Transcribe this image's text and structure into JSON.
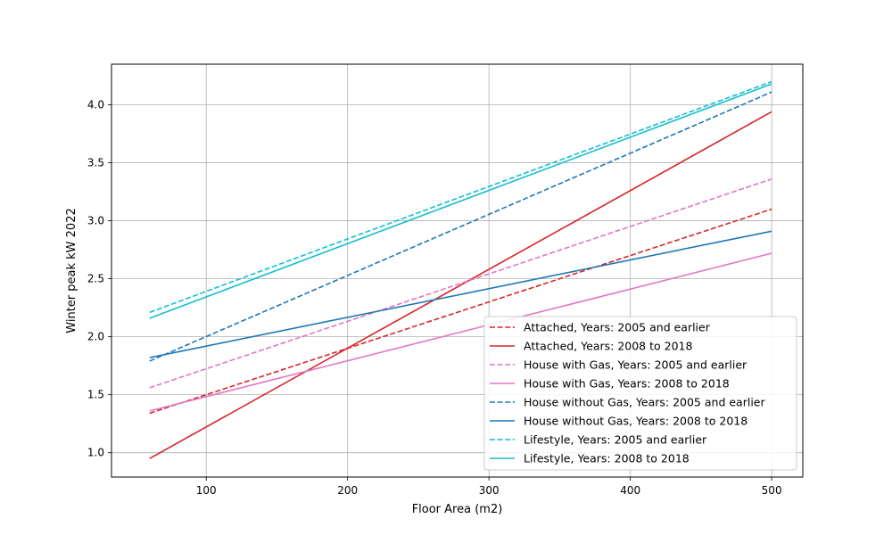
{
  "chart_data": {
    "type": "line",
    "title": "",
    "xlabel": "Floor Area (m2)",
    "ylabel": "Winter peak kW 2022",
    "xlim": [
      33,
      522
    ],
    "ylim": [
      0.79,
      4.35
    ],
    "x_ticks": [
      100,
      200,
      300,
      400,
      500
    ],
    "y_ticks": [
      1.0,
      1.5,
      2.0,
      2.5,
      3.0,
      3.5,
      4.0
    ],
    "grid": true,
    "legend_position": "lower-right",
    "series": [
      {
        "name": "Attached, Years: 2005 and earlier",
        "color": "#d62728",
        "style": "dashed",
        "x": [
          60,
          500
        ],
        "y": [
          1.34,
          3.1
        ]
      },
      {
        "name": "Attached, Years: 2008 to 2018",
        "color": "#d62728",
        "style": "solid",
        "x": [
          60,
          500
        ],
        "y": [
          0.95,
          3.94
        ]
      },
      {
        "name": "House with Gas, Years: 2005 and earlier",
        "color": "#e377c2",
        "style": "dashed",
        "x": [
          60,
          500
        ],
        "y": [
          1.56,
          3.36
        ]
      },
      {
        "name": "House with Gas, Years: 2008 to 2018",
        "color": "#e377c2",
        "style": "solid",
        "x": [
          60,
          500
        ],
        "y": [
          1.36,
          2.72
        ]
      },
      {
        "name": "House without Gas, Years: 2005 and earlier",
        "color": "#1f77b4",
        "style": "dashed",
        "x": [
          60,
          500
        ],
        "y": [
          1.79,
          4.11
        ]
      },
      {
        "name": "House without Gas, Years: 2008 to 2018",
        "color": "#1f77b4",
        "style": "solid",
        "x": [
          60,
          500
        ],
        "y": [
          1.82,
          2.91
        ]
      },
      {
        "name": "Lifestyle, Years: 2005 and earlier",
        "color": "#17becf",
        "style": "dashed",
        "x": [
          60,
          500
        ],
        "y": [
          2.21,
          4.2
        ]
      },
      {
        "name": "Lifestyle, Years: 2008 to 2018",
        "color": "#17becf",
        "style": "solid",
        "x": [
          60,
          500
        ],
        "y": [
          2.16,
          4.18
        ]
      }
    ]
  }
}
